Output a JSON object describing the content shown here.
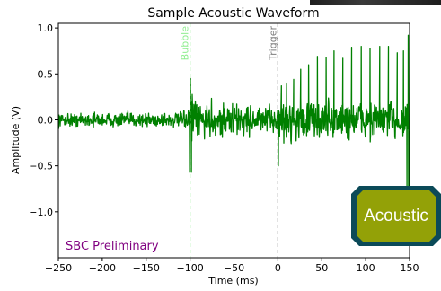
{
  "chart_data": {
    "type": "line",
    "title": "Sample Acoustic Waveform",
    "xlabel": "Time (ms)",
    "ylabel": "Amplitude (V)",
    "xlim": [
      -250,
      150
    ],
    "ylim": [
      -1.5,
      1.05
    ],
    "xticks": [
      -250,
      -200,
      -150,
      -100,
      -50,
      0,
      50,
      100,
      150
    ],
    "yticks": [
      -1.0,
      -0.5,
      0.0,
      0.5,
      1.0
    ],
    "xtick_labels": [
      "−250",
      "−200",
      "−150",
      "−100",
      "−50",
      "0",
      "50",
      "100",
      "150"
    ],
    "ytick_labels": [
      "−1.0",
      "−0.5",
      "0.0",
      "0.5",
      "1.0"
    ],
    "grid": false,
    "series": [
      {
        "name": "",
        "color": "#008000",
        "noise_envelope": [
          {
            "x": -250,
            "amp": 0.1
          },
          {
            "x": -101,
            "amp": 0.12
          },
          {
            "x": -100,
            "amp": 0.55
          },
          {
            "x": -95,
            "amp": 0.3
          },
          {
            "x": -1,
            "amp": 0.2
          },
          {
            "x": 0,
            "amp": 0.32
          },
          {
            "x": 145,
            "amp": 0.3
          },
          {
            "x": 150,
            "amp": 0.55
          }
        ],
        "spikes": [
          {
            "x": -100.5,
            "y": -0.57
          },
          {
            "x": -99.5,
            "y": 0.45
          },
          {
            "x": -98.5,
            "y": -0.57
          },
          {
            "x": 0.5,
            "y": -0.5
          },
          {
            "x": 4,
            "y": 0.37
          },
          {
            "x": 10,
            "y": 0.4
          },
          {
            "x": 18,
            "y": 0.44
          },
          {
            "x": 26,
            "y": 0.55
          },
          {
            "x": 35,
            "y": 0.6
          },
          {
            "x": 45,
            "y": 0.69
          },
          {
            "x": 55,
            "y": 0.68
          },
          {
            "x": 64,
            "y": 0.75
          },
          {
            "x": 74,
            "y": 0.67
          },
          {
            "x": 84,
            "y": 0.79
          },
          {
            "x": 95,
            "y": 0.8
          },
          {
            "x": 105,
            "y": 0.78
          },
          {
            "x": 116,
            "y": 0.8
          },
          {
            "x": 126,
            "y": 0.8
          },
          {
            "x": 136,
            "y": 0.73
          },
          {
            "x": 143,
            "y": 0.75
          },
          {
            "x": 147,
            "y": -0.75
          },
          {
            "x": 148.5,
            "y": 0.92
          },
          {
            "x": 149,
            "y": -1.3
          }
        ]
      }
    ],
    "vlines": [
      {
        "x": -100,
        "label": "Bubble",
        "color": "#90ee90"
      },
      {
        "x": 0,
        "label": "Trigger",
        "color": "#808080"
      }
    ],
    "annotation": {
      "text": "SBC Preliminary",
      "color": "#800080"
    }
  },
  "badge": {
    "label": "Acoustic",
    "background": "#93a107",
    "border": "#0b4a58"
  }
}
